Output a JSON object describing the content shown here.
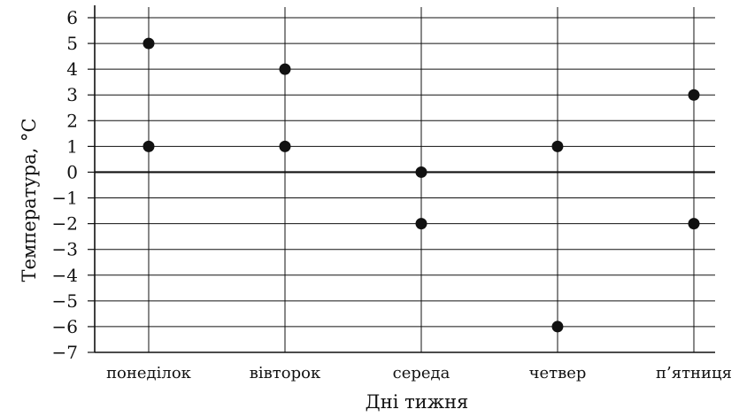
{
  "chart_data": {
    "type": "scatter",
    "categories": [
      "понеділок",
      "вівторок",
      "середа",
      "четвер",
      "п’ятниця"
    ],
    "points": [
      {
        "x": "понеділок",
        "y": 5
      },
      {
        "x": "понеділок",
        "y": 1
      },
      {
        "x": "вівторок",
        "y": 4
      },
      {
        "x": "вівторок",
        "y": 1
      },
      {
        "x": "середа",
        "y": 0
      },
      {
        "x": "середа",
        "y": -2
      },
      {
        "x": "четвер",
        "y": 1
      },
      {
        "x": "четвер",
        "y": -6
      },
      {
        "x": "п’ятниця",
        "y": 3
      },
      {
        "x": "п’ятниця",
        "y": -2
      }
    ],
    "xlabel": "Дні тижня",
    "ylabel": "Температура, °C",
    "ylim": [
      -7,
      6
    ],
    "yticks": [
      "6",
      "5",
      "4",
      "3",
      "2",
      "1",
      "0",
      "−1",
      "−2",
      "−3",
      "−4",
      "−5",
      "−6",
      "−7"
    ],
    "grid": true,
    "marker_color": "#111111",
    "line_color": "#111111"
  }
}
